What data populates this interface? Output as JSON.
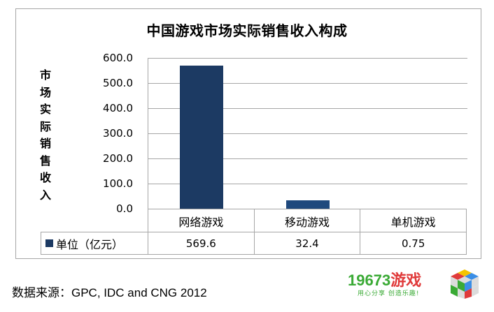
{
  "chart_data": {
    "type": "bar",
    "title": "中国游戏市场实际销售收入构成",
    "xlabel": "",
    "ylabel": "市场实际销售收入",
    "categories": [
      "网络游戏",
      "移动游戏",
      "单机游戏"
    ],
    "series": [
      {
        "name": "单位（亿元）",
        "values": [
          569.6,
          32.4,
          0.75
        ],
        "color": "#1c3a63"
      }
    ],
    "ylim": [
      0,
      600
    ],
    "yticks": [
      "600.0",
      "500.0",
      "400.0",
      "300.0",
      "200.0",
      "100.0",
      "0.0"
    ],
    "grid": true,
    "legend_position": "data-table",
    "data_table": {
      "row_label": "单位（亿元）",
      "values": [
        "569.6",
        "32.4",
        "0.75"
      ]
    }
  },
  "chart": {
    "title": "中国游戏市场实际销售收入构成",
    "ylabel_chars": [
      "市",
      "场",
      "实",
      "际",
      "销",
      "售",
      "收",
      "入"
    ],
    "yticks": [
      "600.0",
      "500.0",
      "400.0",
      "300.0",
      "200.0",
      "100.0",
      "0.0"
    ],
    "categories": [
      "网络游戏",
      "移动游戏",
      "单机游戏"
    ],
    "legend_label": "单位（亿元）",
    "values_text": [
      "569.6",
      "32.4",
      "0.75"
    ],
    "bar_colors": [
      "#1c3a63",
      "#1f497d",
      "#1f497d"
    ]
  },
  "footer": {
    "source": "数据来源：GPC, IDC and CNG 2012"
  },
  "logo": {
    "number": "19673",
    "name": "游戏",
    "slogan": "用心分享 创造乐趣!"
  }
}
